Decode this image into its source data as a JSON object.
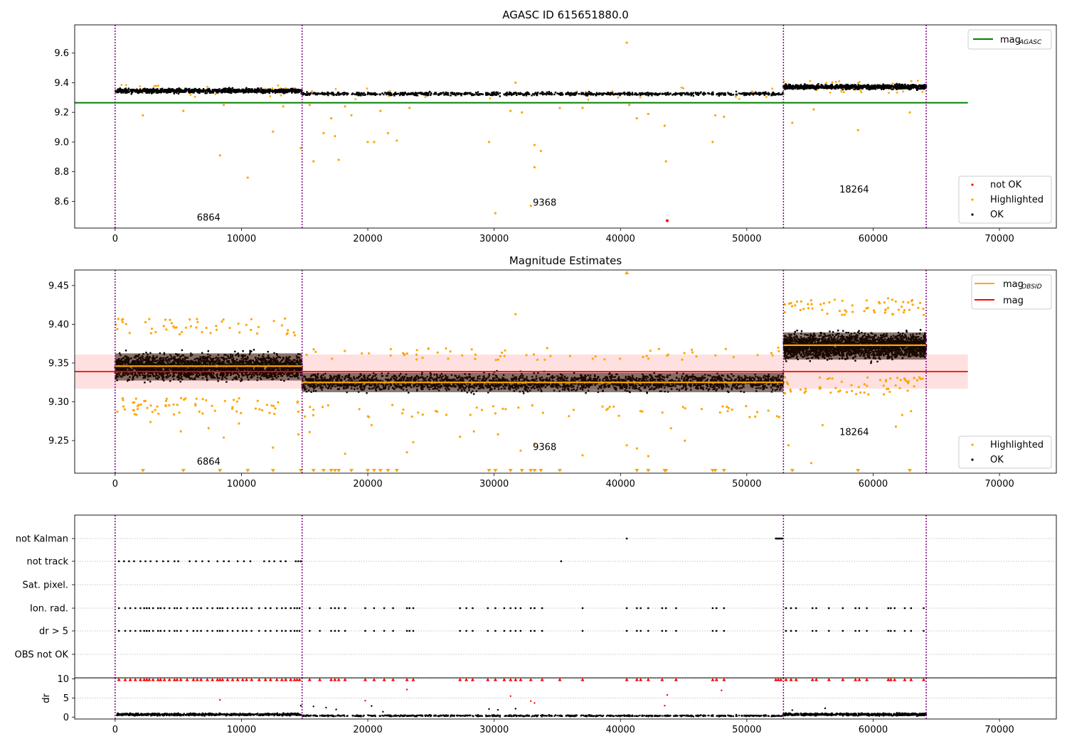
{
  "chart_data": [
    {
      "type": "scatter",
      "title": "AGASC ID 615651880.0",
      "xlim": [
        -3200,
        74500
      ],
      "ylim": [
        8.42,
        9.79
      ],
      "yticks": [
        8.6,
        8.8,
        9.0,
        9.2,
        9.4,
        9.6
      ],
      "ytick_labels": [
        "8.6",
        "8.8",
        "9.0",
        "9.2",
        "9.4",
        "9.6"
      ],
      "xticks": [
        0,
        10000,
        20000,
        30000,
        40000,
        50000,
        60000,
        70000
      ],
      "xtick_labels": [
        "0",
        "10000",
        "20000",
        "30000",
        "40000",
        "50000",
        "60000",
        "70000"
      ],
      "grid": false,
      "obs_boundaries": [
        0,
        14800,
        52900,
        64200
      ],
      "obs_labels": [
        {
          "x": 7400,
          "y": 8.47,
          "text": "6864"
        },
        {
          "x": 34000,
          "y": 8.57,
          "text": "9368"
        },
        {
          "x": 58500,
          "y": 8.66,
          "text": "18264"
        }
      ],
      "lines": [
        {
          "name": "mag_AGASC",
          "color": "#008000",
          "x": [
            -3200,
            67500
          ],
          "y": [
            9.265,
            9.265
          ]
        }
      ],
      "ok_bands": [
        {
          "x": [
            0,
            14800
          ],
          "center": 9.345,
          "spread": 0.025
        },
        {
          "x": [
            14800,
            52900
          ],
          "center": 9.325,
          "spread": 0.018
        },
        {
          "x": [
            52900,
            64200
          ],
          "center": 9.372,
          "spread": 0.025
        }
      ],
      "highlighted_points": [
        {
          "x": 2200,
          "y": 9.18
        },
        {
          "x": 5400,
          "y": 9.21
        },
        {
          "x": 8300,
          "y": 8.91
        },
        {
          "x": 8600,
          "y": 9.25
        },
        {
          "x": 10500,
          "y": 8.76
        },
        {
          "x": 12500,
          "y": 9.07
        },
        {
          "x": 13300,
          "y": 9.24
        },
        {
          "x": 14700,
          "y": 8.96
        },
        {
          "x": 15400,
          "y": 9.25
        },
        {
          "x": 15700,
          "y": 8.87
        },
        {
          "x": 16500,
          "y": 9.06
        },
        {
          "x": 17100,
          "y": 9.16
        },
        {
          "x": 17400,
          "y": 9.04
        },
        {
          "x": 17700,
          "y": 8.88
        },
        {
          "x": 18200,
          "y": 9.24
        },
        {
          "x": 18700,
          "y": 9.18
        },
        {
          "x": 20000,
          "y": 9.0
        },
        {
          "x": 20500,
          "y": 9.0
        },
        {
          "x": 21000,
          "y": 9.21
        },
        {
          "x": 21600,
          "y": 9.06
        },
        {
          "x": 22300,
          "y": 9.01
        },
        {
          "x": 23300,
          "y": 9.23
        },
        {
          "x": 29600,
          "y": 9.0
        },
        {
          "x": 30100,
          "y": 8.52
        },
        {
          "x": 31300,
          "y": 9.21
        },
        {
          "x": 31700,
          "y": 9.4
        },
        {
          "x": 32200,
          "y": 9.2
        },
        {
          "x": 32900,
          "y": 8.57
        },
        {
          "x": 33200,
          "y": 8.98
        },
        {
          "x": 33200,
          "y": 8.83
        },
        {
          "x": 33700,
          "y": 8.94
        },
        {
          "x": 35200,
          "y": 9.23
        },
        {
          "x": 37000,
          "y": 9.23
        },
        {
          "x": 40500,
          "y": 9.67
        },
        {
          "x": 40700,
          "y": 9.25
        },
        {
          "x": 41300,
          "y": 9.16
        },
        {
          "x": 42200,
          "y": 9.19
        },
        {
          "x": 43500,
          "y": 9.11
        },
        {
          "x": 43600,
          "y": 8.87
        },
        {
          "x": 47300,
          "y": 9.0
        },
        {
          "x": 47500,
          "y": 9.18
        },
        {
          "x": 48200,
          "y": 9.17
        },
        {
          "x": 53600,
          "y": 9.13
        },
        {
          "x": 55300,
          "y": 9.22
        },
        {
          "x": 58800,
          "y": 9.08
        },
        {
          "x": 62900,
          "y": 9.2
        }
      ],
      "not_ok_points": [
        {
          "x": 43700,
          "y": 8.47
        }
      ],
      "legends": [
        {
          "position": "upper right",
          "entries": [
            {
              "label": "mag",
              "sub": "AGASC",
              "marker": "line",
              "color": "#008000"
            }
          ]
        },
        {
          "position": "lower right",
          "entries": [
            {
              "label": "not OK",
              "marker": "dot",
              "color": "#ff0000"
            },
            {
              "label": "Highlighted",
              "marker": "dot",
              "color": "#ffa500"
            },
            {
              "label": "OK",
              "marker": "dot",
              "color": "#000000"
            }
          ]
        }
      ]
    },
    {
      "type": "scatter",
      "title": "Magnitude Estimates",
      "xlim": [
        -3200,
        74500
      ],
      "ylim": [
        9.208,
        9.47
      ],
      "yticks": [
        9.25,
        9.3,
        9.35,
        9.4,
        9.45
      ],
      "ytick_labels": [
        "9.25",
        "9.30",
        "9.35",
        "9.40",
        "9.45"
      ],
      "xticks": [
        0,
        10000,
        20000,
        30000,
        40000,
        50000,
        60000,
        70000
      ],
      "xtick_labels": [
        "0",
        "10000",
        "20000",
        "30000",
        "40000",
        "50000",
        "60000",
        "70000"
      ],
      "grid": false,
      "obs_boundaries": [
        0,
        14800,
        52900,
        64200
      ],
      "obs_labels": [
        {
          "x": 7400,
          "y": 9.219,
          "text": "6864"
        },
        {
          "x": 34000,
          "y": 9.238,
          "text": "9368"
        },
        {
          "x": 58500,
          "y": 9.257,
          "text": "18264"
        }
      ],
      "mag_line": {
        "name": "mag",
        "color": "#ff0000",
        "x": [
          -3200,
          67500
        ],
        "y": 9.339
      },
      "mag_band": {
        "x": [
          -3200,
          67500
        ],
        "y": [
          9.317,
          9.361
        ],
        "color": "#ff0000",
        "alpha": 0.12
      },
      "obsid_lines": [
        {
          "x": [
            0,
            14800
          ],
          "y": 9.346
        },
        {
          "x": [
            14800,
            52900
          ],
          "y": 9.325
        },
        {
          "x": [
            52900,
            64200
          ],
          "y": 9.373
        }
      ],
      "ok_bands": [
        {
          "x": [
            0,
            14800
          ],
          "center": 9.345,
          "spread": 0.025
        },
        {
          "x": [
            14800,
            52900
          ],
          "center": 9.325,
          "spread": 0.018
        },
        {
          "x": [
            52900,
            64200
          ],
          "center": 9.372,
          "spread": 0.025
        }
      ],
      "highlighted_points": [
        {
          "x": 2800,
          "y": 9.274
        },
        {
          "x": 5200,
          "y": 9.262
        },
        {
          "x": 7400,
          "y": 9.266
        },
        {
          "x": 8600,
          "y": 9.254
        },
        {
          "x": 9800,
          "y": 9.272
        },
        {
          "x": 12500,
          "y": 9.241
        },
        {
          "x": 14500,
          "y": 9.258
        },
        {
          "x": 15400,
          "y": 9.261
        },
        {
          "x": 18200,
          "y": 9.233
        },
        {
          "x": 20300,
          "y": 9.27
        },
        {
          "x": 23100,
          "y": 9.235
        },
        {
          "x": 23600,
          "y": 9.248
        },
        {
          "x": 27300,
          "y": 9.255
        },
        {
          "x": 28400,
          "y": 9.262
        },
        {
          "x": 30300,
          "y": 9.258
        },
        {
          "x": 31700,
          "y": 9.413
        },
        {
          "x": 32100,
          "y": 9.237
        },
        {
          "x": 33200,
          "y": 9.246
        },
        {
          "x": 37000,
          "y": 9.231
        },
        {
          "x": 40500,
          "y": 9.244
        },
        {
          "x": 41300,
          "y": 9.24
        },
        {
          "x": 42200,
          "y": 9.23
        },
        {
          "x": 44000,
          "y": 9.266
        },
        {
          "x": 45100,
          "y": 9.25
        },
        {
          "x": 53300,
          "y": 9.244
        },
        {
          "x": 55100,
          "y": 9.221
        },
        {
          "x": 56000,
          "y": 9.27
        },
        {
          "x": 61800,
          "y": 9.268
        },
        {
          "x": 62300,
          "y": 9.283
        },
        {
          "x": 63000,
          "y": 9.288
        }
      ],
      "below_range_markers": [
        2200,
        5400,
        8300,
        10500,
        12500,
        14700,
        15700,
        16500,
        17100,
        17400,
        17700,
        18700,
        20000,
        20500,
        21000,
        21600,
        22300,
        29600,
        30100,
        31300,
        32200,
        32900,
        33200,
        33700,
        35200,
        41300,
        42200,
        43500,
        43600,
        47300,
        47500,
        48200,
        53600,
        58800,
        62900
      ],
      "above_range_markers": [
        40500
      ],
      "legends": [
        {
          "position": "upper right",
          "entries": [
            {
              "label": "mag",
              "sub": "OBSID",
              "marker": "line",
              "color": "#ffa500"
            },
            {
              "label": "mag",
              "sub": "",
              "marker": "line",
              "color": "#ff0000"
            }
          ]
        },
        {
          "position": "lower right",
          "entries": [
            {
              "label": "Highlighted",
              "marker": "dot",
              "color": "#ffa500"
            },
            {
              "label": "OK",
              "marker": "dot",
              "color": "#000000"
            }
          ]
        }
      ]
    },
    {
      "type": "scatter",
      "title": "",
      "xlim": [
        -3200,
        74500
      ],
      "flag_rows": [
        "not Kalman",
        "not track",
        "Sat. pixel.",
        "Ion. rad.",
        "dr > 5",
        "OBS not OK"
      ],
      "grid": true,
      "obs_boundaries": [
        0,
        14800,
        52900,
        64200
      ],
      "flag_points": {
        "not Kalman": [
          40500,
          52300,
          52400,
          52500,
          52600,
          52700,
          52800
        ],
        "not track": [
          300,
          700,
          1100,
          1500,
          2000,
          2400,
          2800,
          3300,
          3800,
          4200,
          4700,
          5000,
          5900,
          6400,
          6900,
          7400,
          8100,
          8600,
          9000,
          9700,
          10200,
          10700,
          11800,
          12200,
          12600,
          13100,
          13500,
          14300,
          14500,
          14700,
          35300
        ],
        "Sat. pixel.": [],
        "Ion. rad.": [
          300,
          800,
          1200,
          1600,
          2000,
          2300,
          2500,
          2700,
          3000,
          3400,
          3600,
          3900,
          4300,
          4700,
          4900,
          5200,
          5700,
          6200,
          6500,
          6800,
          7300,
          7700,
          8100,
          8300,
          8500,
          8900,
          9300,
          9700,
          10100,
          10400,
          10800,
          11400,
          11900,
          12300,
          12800,
          13200,
          13500,
          13900,
          14200,
          14400,
          14600,
          15400,
          16200,
          17100,
          17400,
          17700,
          18200,
          19800,
          20500,
          21300,
          22000,
          23100,
          23300,
          23600,
          27300,
          27800,
          28300,
          29500,
          30100,
          30800,
          31300,
          31700,
          32100,
          32900,
          33200,
          33800,
          37000,
          40500,
          41300,
          41600,
          42200,
          43300,
          43600,
          44400,
          47300,
          47600,
          48200,
          53100,
          53500,
          53900,
          55200,
          55500,
          56500,
          57600,
          58600,
          58900,
          59500,
          61200,
          61400,
          61700,
          62500,
          63000,
          64000
        ],
        "dr > 5": [
          300,
          800,
          1200,
          1600,
          2000,
          2300,
          2500,
          2700,
          3000,
          3400,
          3600,
          3900,
          4300,
          4700,
          4900,
          5200,
          5700,
          6200,
          6500,
          6800,
          7300,
          7700,
          8100,
          8300,
          8500,
          8900,
          9300,
          9700,
          10100,
          10400,
          10800,
          11400,
          11900,
          12300,
          12800,
          13200,
          13500,
          13900,
          14200,
          14400,
          14600,
          15400,
          16200,
          17100,
          17400,
          17700,
          18200,
          19800,
          20500,
          21300,
          22000,
          23100,
          23300,
          23600,
          27300,
          27800,
          28300,
          29500,
          30100,
          30800,
          31300,
          31700,
          32100,
          32900,
          33200,
          33800,
          37000,
          40500,
          41300,
          41600,
          42200,
          43300,
          43600,
          44400,
          47300,
          47600,
          48200,
          53100,
          53500,
          53900,
          55200,
          55500,
          56500,
          57600,
          58600,
          58900,
          59500,
          61200,
          61400,
          61700,
          62500,
          63000,
          64000
        ],
        "OBS not OK": []
      }
    },
    {
      "type": "scatter",
      "title": "",
      "ylabel": "dr",
      "xlim": [
        -3200,
        74500
      ],
      "ylim": [
        -0.5,
        10.3
      ],
      "yticks": [
        0,
        5,
        10
      ],
      "ytick_labels": [
        "0",
        "5",
        "10"
      ],
      "xticks": [
        0,
        10000,
        20000,
        30000,
        40000,
        50000,
        60000,
        70000
      ],
      "xtick_labels": [
        "0",
        "10000",
        "20000",
        "30000",
        "40000",
        "50000",
        "60000",
        "70000"
      ],
      "grid": true,
      "obs_boundaries": [
        0,
        14800,
        52900,
        64200
      ],
      "ok_bands": [
        {
          "x": [
            0,
            14800
          ],
          "center": 0.7,
          "spread": 0.5
        },
        {
          "x": [
            14800,
            52900
          ],
          "center": 0.35,
          "spread": 0.3
        },
        {
          "x": [
            52900,
            64200
          ],
          "center": 0.7,
          "spread": 0.5
        }
      ],
      "saturated_markers": [
        300,
        800,
        1200,
        1600,
        2000,
        2300,
        2500,
        2700,
        3000,
        3400,
        3600,
        3900,
        4300,
        4700,
        4900,
        5200,
        5700,
        6200,
        6500,
        6800,
        7300,
        7700,
        8100,
        8300,
        8500,
        8900,
        9300,
        9700,
        10100,
        10400,
        10800,
        11400,
        11900,
        12300,
        12800,
        13200,
        13500,
        13900,
        14200,
        14400,
        14600,
        15400,
        16200,
        17100,
        17400,
        17700,
        18200,
        19800,
        20500,
        21300,
        22000,
        23100,
        23600,
        27300,
        27800,
        28300,
        29500,
        30100,
        30800,
        31300,
        31700,
        32100,
        32900,
        33800,
        35200,
        37000,
        40500,
        41300,
        41600,
        42200,
        43300,
        44400,
        47300,
        47600,
        48200,
        52300,
        52500,
        52700,
        53100,
        53500,
        53900,
        55200,
        55500,
        56500,
        57600,
        58600,
        58900,
        59500,
        61200,
        61400,
        61700,
        62500,
        63000,
        64000
      ],
      "red_points": [
        {
          "x": 8300,
          "y": 4.5
        },
        {
          "x": 19800,
          "y": 4.3
        },
        {
          "x": 23100,
          "y": 7.2
        },
        {
          "x": 31300,
          "y": 5.5
        },
        {
          "x": 32900,
          "y": 4.2
        },
        {
          "x": 33200,
          "y": 3.7
        },
        {
          "x": 43500,
          "y": 3.0
        },
        {
          "x": 43700,
          "y": 5.8
        },
        {
          "x": 48000,
          "y": 7.0
        }
      ],
      "black_outliers": [
        {
          "x": 14700,
          "y": 3.0
        },
        {
          "x": 15700,
          "y": 2.8
        },
        {
          "x": 16700,
          "y": 2.5
        },
        {
          "x": 17500,
          "y": 2.0
        },
        {
          "x": 20300,
          "y": 2.9
        },
        {
          "x": 21200,
          "y": 1.4
        },
        {
          "x": 29600,
          "y": 2.1
        },
        {
          "x": 30300,
          "y": 1.9
        },
        {
          "x": 31700,
          "y": 2.2
        },
        {
          "x": 53600,
          "y": 1.8
        },
        {
          "x": 56200,
          "y": 2.3
        }
      ]
    }
  ]
}
